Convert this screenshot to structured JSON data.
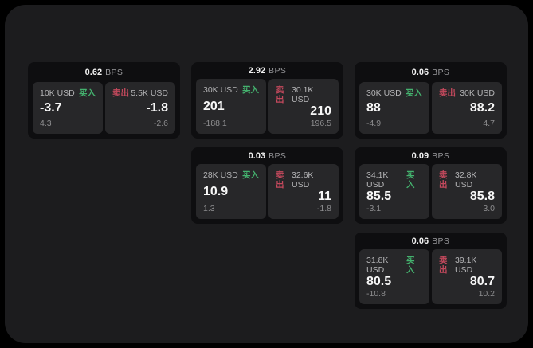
{
  "colors": {
    "page_bg": "#000000",
    "frame_bg": "#1c1c1e",
    "card_bg": "#0e0e10",
    "pane_bg": "#272729",
    "buy": "#44b26e",
    "sell": "#c4495d",
    "value_text": "#f7f7f7",
    "label_text": "#b5b5b7",
    "sub_text": "#8d8d8f"
  },
  "labels": {
    "bps": "BPS",
    "buy": "买入",
    "sell": "卖出"
  },
  "cards": [
    {
      "bps": "0.62",
      "col": 1,
      "row": 1,
      "buy": {
        "size": "10K USD",
        "value": "-3.7",
        "sub": "4.3"
      },
      "sell": {
        "size": "5.5K USD",
        "value": "-1.8",
        "sub": "-2.6"
      }
    },
    {
      "bps": "2.92",
      "col": 2,
      "row": 1,
      "buy": {
        "size": "30K USD",
        "value": "201",
        "sub": "-188.1"
      },
      "sell": {
        "size": "30.1K USD",
        "value": "210",
        "sub": "196.5"
      }
    },
    {
      "bps": "0.06",
      "col": 3,
      "row": 1,
      "buy": {
        "size": "30K USD",
        "value": "88",
        "sub": "-4.9"
      },
      "sell": {
        "size": "30K USD",
        "value": "88.2",
        "sub": "4.7"
      }
    },
    {
      "bps": "0.03",
      "col": 2,
      "row": 2,
      "buy": {
        "size": "28K USD",
        "value": "10.9",
        "sub": "1.3"
      },
      "sell": {
        "size": "32.6K USD",
        "value": "11",
        "sub": "-1.8"
      }
    },
    {
      "bps": "0.09",
      "col": 3,
      "row": 2,
      "buy": {
        "size": "34.1K USD",
        "value": "85.5",
        "sub": "-3.1"
      },
      "sell": {
        "size": "32.8K USD",
        "value": "85.8",
        "sub": "3.0"
      }
    },
    {
      "bps": "0.06",
      "col": 3,
      "row": 3,
      "buy": {
        "size": "31.8K USD",
        "value": "80.5",
        "sub": "-10.8"
      },
      "sell": {
        "size": "39.1K USD",
        "value": "80.7",
        "sub": "10.2"
      }
    }
  ]
}
